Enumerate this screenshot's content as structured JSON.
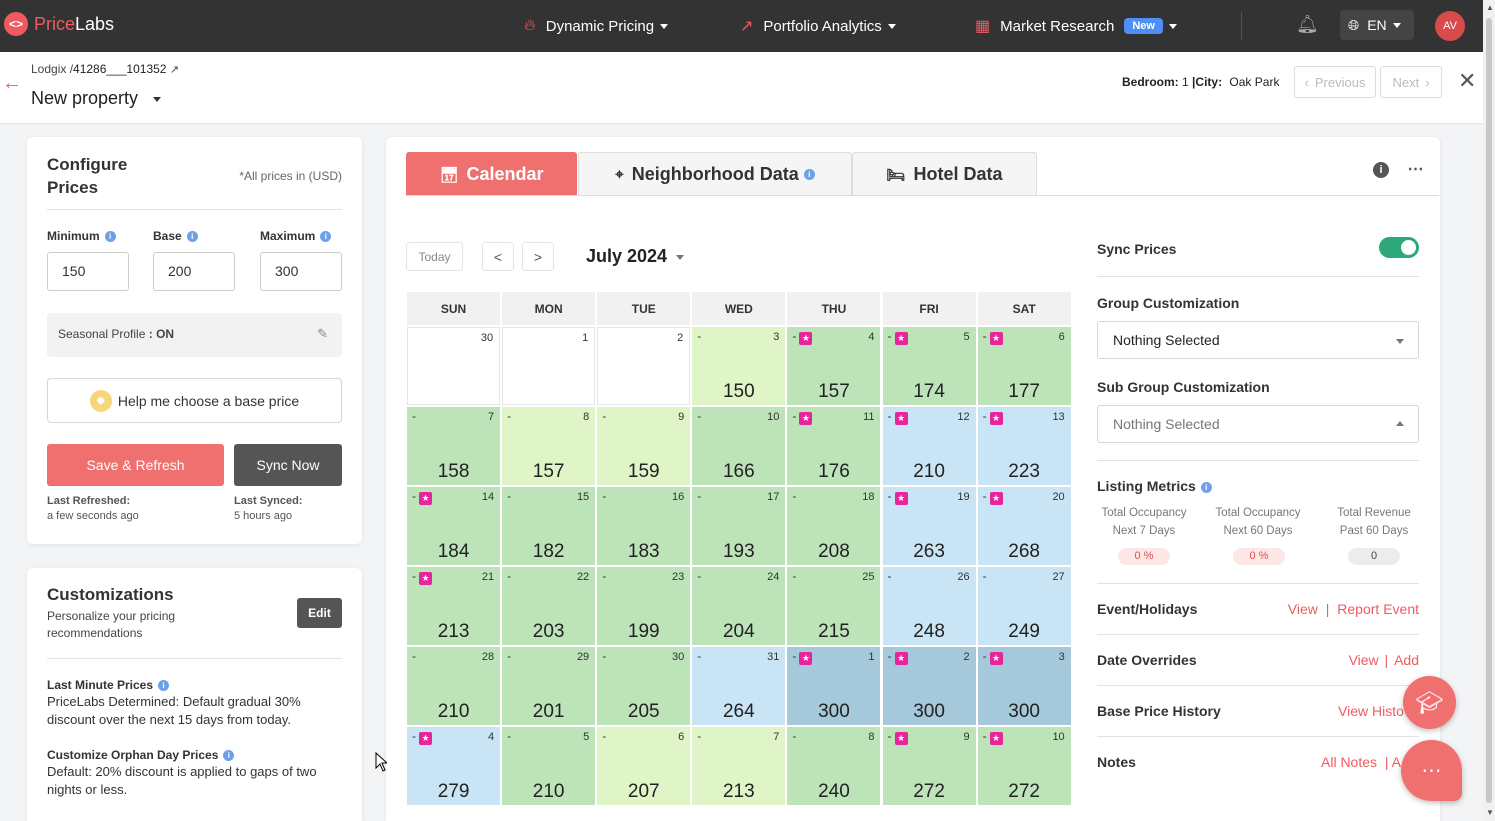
{
  "topbar": {
    "logo_text_a": "Price",
    "logo_text_b": "Labs",
    "nav": [
      {
        "label": "Dynamic Pricing",
        "icon": "flame-icon"
      },
      {
        "label": "Portfolio Analytics",
        "icon": "trend-icon"
      },
      {
        "label": "Market Research",
        "icon": "grid-icon",
        "badge": "New"
      }
    ],
    "lang": "EN",
    "avatar": "AV"
  },
  "header": {
    "crumb_source": "Lodgix /",
    "crumb_id": "41286___101352",
    "property": "New property",
    "bedroom_label": "Bedroom:",
    "bedroom_value": "1",
    "city_label": "|City:",
    "city_value": "Oak Park",
    "previous": "Previous",
    "next": "Next"
  },
  "configure": {
    "title": "Configure Prices",
    "note": "*All prices in (USD)",
    "min_label": "Minimum",
    "base_label": "Base",
    "max_label": "Maximum",
    "min_value": "150",
    "base_value": "200",
    "max_value": "300",
    "seasonal_label": "Seasonal Profile",
    "seasonal_value": ": ON",
    "help_label": "Help me choose a base price",
    "save_label": "Save & Refresh",
    "sync_label": "Sync Now",
    "last_refreshed_label": "Last Refreshed:",
    "last_refreshed_value": "a few seconds ago",
    "last_synced_label": "Last Synced:",
    "last_synced_value": "5 hours ago"
  },
  "customizations": {
    "title": "Customizations",
    "subtitle": "Personalize your pricing recommendations",
    "edit_label": "Edit",
    "lmp_title": "Last Minute Prices",
    "lmp_desc": "PriceLabs Determined: Default gradual 30% discount over the next 15 days from today.",
    "orphan_title": "Customize Orphan Day Prices",
    "orphan_desc": "Default: 20% discount is applied to gaps of two nights or less."
  },
  "tabs": [
    {
      "label": "Calendar"
    },
    {
      "label": "Neighborhood Data"
    },
    {
      "label": "Hotel Data"
    }
  ],
  "calendar": {
    "today_label": "Today",
    "prev_label": "<",
    "next_label": ">",
    "month_label": "July 2024",
    "days": [
      "SUN",
      "MON",
      "TUE",
      "WED",
      "THU",
      "FRI",
      "SAT"
    ],
    "colors": {
      "w": "#ffffff",
      "l": "#dff5c8",
      "g": "#bde3b8",
      "b": "#c9e5f5",
      "d": "#a5c8da"
    },
    "weeks": [
      [
        {
          "d": "30",
          "p": "",
          "c": "w",
          "dash": false,
          "star": false
        },
        {
          "d": "1",
          "p": "",
          "c": "w",
          "dash": false,
          "star": false
        },
        {
          "d": "2",
          "p": "",
          "c": "w",
          "dash": false,
          "star": false
        },
        {
          "d": "3",
          "p": "150",
          "c": "l",
          "dash": true,
          "star": false
        },
        {
          "d": "4",
          "p": "157",
          "c": "g",
          "dash": true,
          "star": true
        },
        {
          "d": "5",
          "p": "174",
          "c": "g",
          "dash": true,
          "star": true
        },
        {
          "d": "6",
          "p": "177",
          "c": "g",
          "dash": true,
          "star": true
        }
      ],
      [
        {
          "d": "7",
          "p": "158",
          "c": "g",
          "dash": true,
          "star": false
        },
        {
          "d": "8",
          "p": "157",
          "c": "l",
          "dash": true,
          "star": false
        },
        {
          "d": "9",
          "p": "159",
          "c": "l",
          "dash": true,
          "star": false
        },
        {
          "d": "10",
          "p": "166",
          "c": "g",
          "dash": true,
          "star": false
        },
        {
          "d": "11",
          "p": "176",
          "c": "g",
          "dash": true,
          "star": true
        },
        {
          "d": "12",
          "p": "210",
          "c": "b",
          "dash": true,
          "star": true
        },
        {
          "d": "13",
          "p": "223",
          "c": "b",
          "dash": true,
          "star": true
        }
      ],
      [
        {
          "d": "14",
          "p": "184",
          "c": "g",
          "dash": true,
          "star": true
        },
        {
          "d": "15",
          "p": "182",
          "c": "g",
          "dash": true,
          "star": false
        },
        {
          "d": "16",
          "p": "183",
          "c": "g",
          "dash": true,
          "star": false
        },
        {
          "d": "17",
          "p": "193",
          "c": "g",
          "dash": true,
          "star": false
        },
        {
          "d": "18",
          "p": "208",
          "c": "g",
          "dash": true,
          "star": false
        },
        {
          "d": "19",
          "p": "263",
          "c": "b",
          "dash": true,
          "star": true
        },
        {
          "d": "20",
          "p": "268",
          "c": "b",
          "dash": true,
          "star": true
        }
      ],
      [
        {
          "d": "21",
          "p": "213",
          "c": "g",
          "dash": true,
          "star": true
        },
        {
          "d": "22",
          "p": "203",
          "c": "g",
          "dash": true,
          "star": false
        },
        {
          "d": "23",
          "p": "199",
          "c": "g",
          "dash": true,
          "star": false
        },
        {
          "d": "24",
          "p": "204",
          "c": "g",
          "dash": true,
          "star": false
        },
        {
          "d": "25",
          "p": "215",
          "c": "g",
          "dash": true,
          "star": false
        },
        {
          "d": "26",
          "p": "248",
          "c": "b",
          "dash": true,
          "star": false
        },
        {
          "d": "27",
          "p": "249",
          "c": "b",
          "dash": true,
          "star": false
        }
      ],
      [
        {
          "d": "28",
          "p": "210",
          "c": "g",
          "dash": true,
          "star": false
        },
        {
          "d": "29",
          "p": "201",
          "c": "g",
          "dash": true,
          "star": false
        },
        {
          "d": "30",
          "p": "205",
          "c": "g",
          "dash": true,
          "star": false
        },
        {
          "d": "31",
          "p": "264",
          "c": "b",
          "dash": true,
          "star": false
        },
        {
          "d": "1",
          "p": "300",
          "c": "d",
          "dash": true,
          "star": true
        },
        {
          "d": "2",
          "p": "300",
          "c": "d",
          "dash": true,
          "star": true
        },
        {
          "d": "3",
          "p": "300",
          "c": "d",
          "dash": true,
          "star": true
        }
      ],
      [
        {
          "d": "4",
          "p": "279",
          "c": "b",
          "dash": true,
          "star": true
        },
        {
          "d": "5",
          "p": "210",
          "c": "g",
          "dash": true,
          "star": false
        },
        {
          "d": "6",
          "p": "207",
          "c": "l",
          "dash": true,
          "star": false
        },
        {
          "d": "7",
          "p": "213",
          "c": "l",
          "dash": true,
          "star": false
        },
        {
          "d": "8",
          "p": "240",
          "c": "g",
          "dash": true,
          "star": false
        },
        {
          "d": "9",
          "p": "272",
          "c": "g",
          "dash": true,
          "star": true
        },
        {
          "d": "10",
          "p": "272",
          "c": "g",
          "dash": true,
          "star": true
        }
      ]
    ]
  },
  "side": {
    "sync_prices": "Sync Prices",
    "sync_on": true,
    "group_label": "Group Customization",
    "group_value": "Nothing Selected",
    "subgroup_label": "Sub Group Customization",
    "subgroup_value": "Nothing Selected",
    "metrics_label": "Listing Metrics",
    "metrics": [
      {
        "line1": "Total Occupancy",
        "line2": "Next 7 Days",
        "value": "0 %"
      },
      {
        "line1": "Total Occupancy",
        "line2": "Next 60 Days",
        "value": "0 %"
      },
      {
        "line1": "Total Revenue",
        "line2": "Past 60 Days",
        "value": "0"
      }
    ],
    "events_label": "Event/Holidays",
    "events_view": "View",
    "events_sep": "|",
    "events_report": "Report Event",
    "overrides_label": "Date Overrides",
    "overrides_view": "View",
    "overrides_sep": "|",
    "overrides_add": "Add",
    "history_label": "Base Price History",
    "history_link": "View Histo",
    "notes_label": "Notes",
    "notes_link": "All Notes",
    "notes_sep": "| A"
  }
}
